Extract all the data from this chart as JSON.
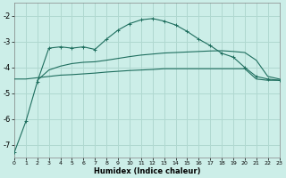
{
  "xlabel": "Humidex (Indice chaleur)",
  "bg_color": "#cceee8",
  "grid_color": "#b0d8d0",
  "line_color": "#1e6e5e",
  "xlim": [
    0,
    23
  ],
  "ylim": [
    -7.5,
    -1.5
  ],
  "xticks": [
    0,
    1,
    2,
    3,
    4,
    5,
    6,
    7,
    8,
    9,
    10,
    11,
    12,
    13,
    14,
    15,
    16,
    17,
    18,
    19,
    20,
    21,
    22,
    23
  ],
  "yticks": [
    -7,
    -6,
    -5,
    -4,
    -3,
    -2
  ],
  "curve1_x": [
    0,
    1,
    2,
    3,
    4,
    5,
    6,
    7,
    8,
    9,
    10,
    11,
    12,
    13,
    14,
    15,
    16,
    17,
    18,
    19,
    20,
    21,
    22,
    23
  ],
  "curve1_y": [
    -7.3,
    -6.1,
    -4.55,
    -3.25,
    -3.2,
    -3.25,
    -3.2,
    -3.3,
    -2.9,
    -2.55,
    -2.3,
    -2.15,
    -2.1,
    -2.2,
    -2.35,
    -2.6,
    -2.9,
    -3.15,
    -3.45,
    -3.6,
    -4.0,
    -4.35,
    -4.45,
    -4.5
  ],
  "curve2_x": [
    2,
    3,
    4,
    5,
    6,
    7,
    8,
    9,
    10,
    11,
    12,
    13,
    14,
    15,
    16,
    17,
    18,
    19,
    20,
    21,
    22,
    23
  ],
  "curve2_y": [
    -4.5,
    -4.1,
    -3.95,
    -3.85,
    -3.8,
    -3.78,
    -3.72,
    -3.65,
    -3.58,
    -3.52,
    -3.48,
    -3.44,
    -3.42,
    -3.4,
    -3.38,
    -3.36,
    -3.35,
    -3.38,
    -3.42,
    -3.72,
    -4.35,
    -4.45
  ],
  "curve3_x": [
    0,
    1,
    2,
    3,
    4,
    5,
    6,
    7,
    8,
    9,
    10,
    11,
    12,
    13,
    14,
    15,
    16,
    17,
    18,
    19,
    20,
    21,
    22,
    23
  ],
  "curve3_y": [
    -4.45,
    -4.45,
    -4.4,
    -4.35,
    -4.3,
    -4.28,
    -4.25,
    -4.22,
    -4.18,
    -4.15,
    -4.12,
    -4.1,
    -4.08,
    -4.05,
    -4.05,
    -4.05,
    -4.05,
    -4.05,
    -4.05,
    -4.05,
    -4.05,
    -4.45,
    -4.5,
    -4.5
  ]
}
